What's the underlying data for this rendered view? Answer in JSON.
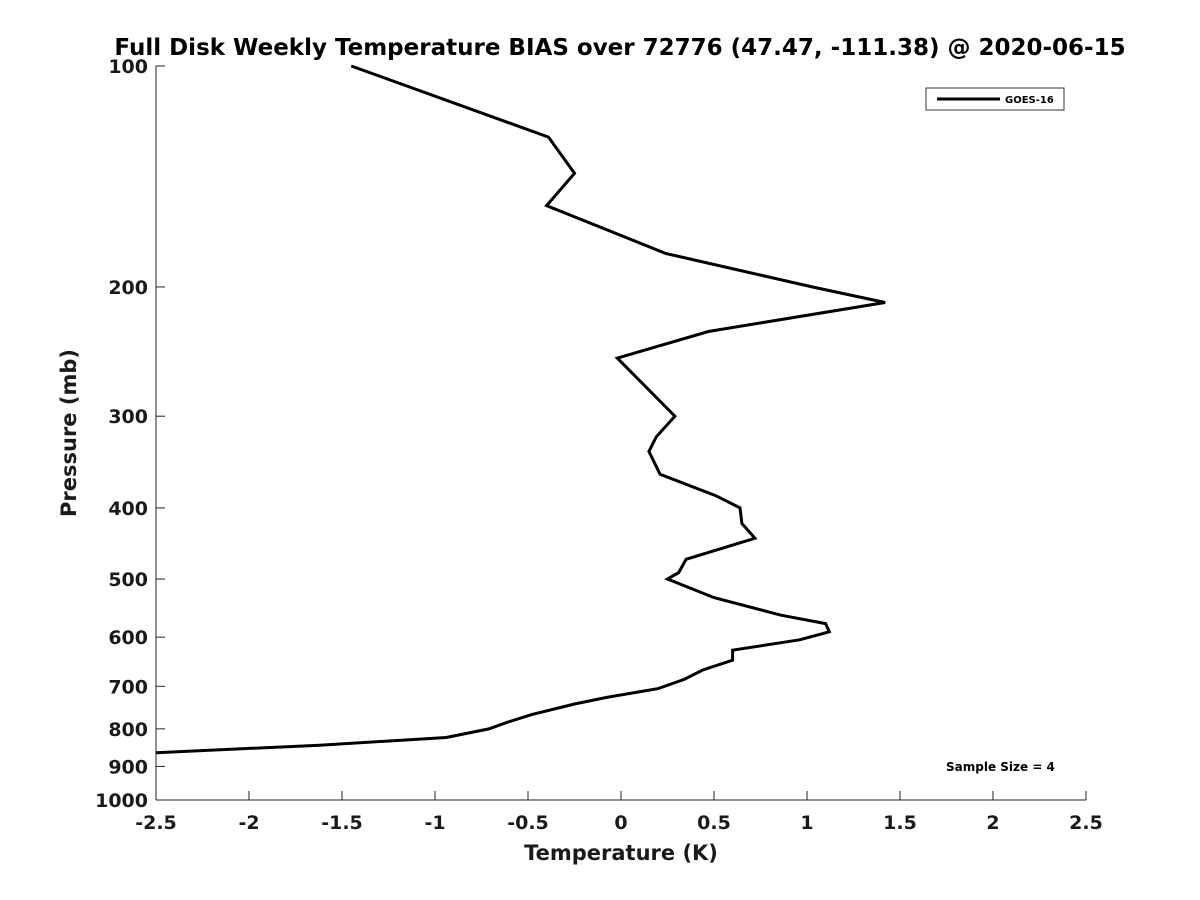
{
  "chart_data": {
    "type": "line",
    "title": "Full Disk Weekly Temperature BIAS over 72776 (47.47, -111.38) @ 2020-06-15",
    "xlabel": "Temperature (K)",
    "ylabel": "Pressure (mb)",
    "xlim": [
      -2.5,
      2.5
    ],
    "ylim": [
      100,
      1000
    ],
    "y_scale": "log",
    "y_reversed": true,
    "x_ticks": [
      "-2.5",
      "-2",
      "-1.5",
      "-1",
      "-0.5",
      "0",
      "0.5",
      "1",
      "1.5",
      "2",
      "2.5"
    ],
    "y_ticks": [
      "100",
      "200",
      "300",
      "400",
      "500",
      "600",
      "700",
      "800",
      "900",
      "1000"
    ],
    "grid": false,
    "legend": {
      "placement": "top-right",
      "entries": [
        "GOES-16"
      ]
    },
    "annotation": "Sample Size = 4",
    "series": [
      {
        "name": "GOES-16",
        "color": "#000000",
        "points": [
          [
            -1.45,
            100
          ],
          [
            -0.39,
            125
          ],
          [
            -0.25,
            140
          ],
          [
            -0.4,
            155
          ],
          [
            0.24,
            180
          ],
          [
            1.03,
            200
          ],
          [
            1.42,
            210
          ],
          [
            0.47,
            230
          ],
          [
            -0.02,
            250
          ],
          [
            0.29,
            300
          ],
          [
            0.19,
            320
          ],
          [
            0.15,
            335
          ],
          [
            0.21,
            360
          ],
          [
            0.51,
            385
          ],
          [
            0.64,
            400
          ],
          [
            0.65,
            420
          ],
          [
            0.72,
            440
          ],
          [
            0.35,
            470
          ],
          [
            0.31,
            490
          ],
          [
            0.25,
            500
          ],
          [
            0.5,
            530
          ],
          [
            0.86,
            560
          ],
          [
            1.1,
            575
          ],
          [
            1.12,
            590
          ],
          [
            0.96,
            605
          ],
          [
            0.6,
            625
          ],
          [
            0.6,
            645
          ],
          [
            0.44,
            665
          ],
          [
            0.34,
            685
          ],
          [
            0.2,
            705
          ],
          [
            -0.08,
            725
          ],
          [
            -0.25,
            740
          ],
          [
            -0.48,
            765
          ],
          [
            -0.62,
            785
          ],
          [
            -0.71,
            800
          ],
          [
            -0.94,
            822
          ],
          [
            -1.62,
            842
          ],
          [
            -2.5,
            862
          ]
        ]
      }
    ]
  }
}
